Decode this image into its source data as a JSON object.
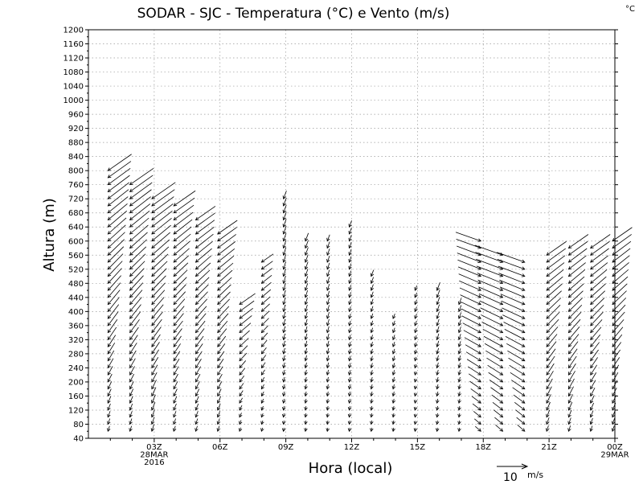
{
  "chart_data": {
    "type": "wind-barb-time-height",
    "title": "SODAR - SJC - Temperatura (°C) e Vento (m/s)",
    "corner_unit": "°C",
    "ylabel": "Altura (m)",
    "xlabel": "Hora (local)",
    "ylim": [
      40,
      1200
    ],
    "y_ticks": [
      40,
      80,
      120,
      160,
      200,
      240,
      280,
      320,
      360,
      400,
      440,
      480,
      520,
      560,
      600,
      640,
      680,
      720,
      760,
      800,
      840,
      880,
      920,
      960,
      1000,
      1040,
      1080,
      1120,
      1160,
      1200
    ],
    "x_range_hours": [
      0,
      24
    ],
    "x_ticks": [
      {
        "hour": 3,
        "lines": [
          "03Z",
          "28MAR",
          "2016"
        ]
      },
      {
        "hour": 6,
        "lines": [
          "06Z"
        ]
      },
      {
        "hour": 9,
        "lines": [
          "09Z"
        ]
      },
      {
        "hour": 12,
        "lines": [
          "12Z"
        ]
      },
      {
        "hour": 15,
        "lines": [
          "15Z"
        ]
      },
      {
        "hour": 18,
        "lines": [
          "18Z"
        ]
      },
      {
        "hour": 21,
        "lines": [
          "21Z"
        ]
      },
      {
        "hour": 24,
        "lines": [
          "00Z",
          "29MAR"
        ]
      }
    ],
    "reference_vector": {
      "value": "10",
      "unit": "m/s"
    },
    "profiles": [
      {
        "hour": 1,
        "top": 800,
        "ws": [
          [
            40,
            3
          ],
          [
            200,
            5
          ],
          [
            360,
            9
          ],
          [
            600,
            11
          ],
          [
            800,
            12
          ]
        ]
      },
      {
        "hour": 2,
        "top": 760,
        "ws": [
          [
            40,
            3
          ],
          [
            200,
            5
          ],
          [
            360,
            9
          ],
          [
            600,
            11
          ],
          [
            760,
            12
          ]
        ]
      },
      {
        "hour": 3,
        "top": 720,
        "ws": [
          [
            40,
            4
          ],
          [
            200,
            6
          ],
          [
            360,
            9
          ],
          [
            600,
            11
          ],
          [
            720,
            12
          ]
        ]
      },
      {
        "hour": 4,
        "top": 700,
        "ws": [
          [
            40,
            3
          ],
          [
            200,
            5
          ],
          [
            360,
            8
          ],
          [
            600,
            10
          ],
          [
            700,
            11
          ]
        ]
      },
      {
        "hour": 5,
        "top": 660,
        "ws": [
          [
            40,
            3
          ],
          [
            200,
            5
          ],
          [
            360,
            8
          ],
          [
            600,
            10
          ],
          [
            660,
            10
          ]
        ]
      },
      {
        "hour": 6,
        "top": 620,
        "ws": [
          [
            40,
            3
          ],
          [
            200,
            5
          ],
          [
            360,
            8
          ],
          [
            600,
            10
          ],
          [
            620,
            10
          ]
        ]
      },
      {
        "hour": 7,
        "top": 420,
        "ws": [
          [
            40,
            2
          ],
          [
            200,
            4
          ],
          [
            360,
            7
          ],
          [
            420,
            8
          ]
        ]
      },
      {
        "hour": 8,
        "top": 540,
        "ws": [
          [
            40,
            2
          ],
          [
            200,
            3
          ],
          [
            360,
            5
          ],
          [
            540,
            6
          ]
        ]
      },
      {
        "hour": 9,
        "top": 720,
        "ws": [
          [
            40,
            2
          ],
          [
            200,
            3
          ],
          [
            360,
            4
          ],
          [
            600,
            5
          ],
          [
            720,
            5
          ]
        ]
      },
      {
        "hour": 10,
        "top": 600,
        "ws": [
          [
            40,
            2
          ],
          [
            200,
            3
          ],
          [
            360,
            4
          ],
          [
            600,
            5
          ]
        ]
      },
      {
        "hour": 11,
        "top": 600,
        "ws": [
          [
            40,
            2
          ],
          [
            200,
            3
          ],
          [
            360,
            4
          ],
          [
            600,
            4
          ]
        ]
      },
      {
        "hour": 12,
        "top": 640,
        "ws": [
          [
            40,
            2
          ],
          [
            200,
            3
          ],
          [
            360,
            3
          ],
          [
            640,
            4
          ]
        ]
      },
      {
        "hour": 13,
        "top": 500,
        "ws": [
          [
            40,
            2
          ],
          [
            200,
            3
          ],
          [
            360,
            3
          ],
          [
            500,
            4
          ]
        ]
      },
      {
        "hour": 14,
        "top": 380,
        "ws": [
          [
            40,
            2
          ],
          [
            200,
            3
          ],
          [
            380,
            3
          ]
        ]
      },
      {
        "hour": 15,
        "top": 460,
        "ws": [
          [
            40,
            2
          ],
          [
            200,
            2
          ],
          [
            360,
            3
          ],
          [
            460,
            3
          ]
        ]
      },
      {
        "hour": 16,
        "top": 460,
        "ws": [
          [
            40,
            2
          ],
          [
            200,
            3
          ],
          [
            360,
            4
          ],
          [
            460,
            5
          ]
        ]
      },
      {
        "hour": 17,
        "top": 420,
        "ws": [
          [
            40,
            2
          ],
          [
            200,
            3
          ],
          [
            420,
            4
          ]
        ]
      },
      {
        "hour": 18,
        "top": 600,
        "ws": [
          [
            40,
            3
          ],
          [
            200,
            6
          ],
          [
            360,
            8
          ],
          [
            600,
            9
          ]
        ]
      },
      {
        "hour": 19,
        "top": 560,
        "ws": [
          [
            40,
            4
          ],
          [
            200,
            7
          ],
          [
            360,
            9
          ],
          [
            560,
            10
          ]
        ]
      },
      {
        "hour": 20,
        "top": 540,
        "ws": [
          [
            40,
            4
          ],
          [
            200,
            7
          ],
          [
            360,
            9
          ],
          [
            540,
            10
          ]
        ]
      },
      {
        "hour": 21,
        "top": 560,
        "ws": [
          [
            40,
            3
          ],
          [
            200,
            7
          ],
          [
            360,
            9
          ],
          [
            560,
            10
          ]
        ]
      },
      {
        "hour": 22,
        "top": 580,
        "ws": [
          [
            40,
            3
          ],
          [
            200,
            7
          ],
          [
            360,
            9
          ],
          [
            580,
            10
          ]
        ]
      },
      {
        "hour": 23,
        "top": 580,
        "ws": [
          [
            40,
            3
          ],
          [
            200,
            6
          ],
          [
            360,
            9
          ],
          [
            580,
            10
          ]
        ]
      },
      {
        "hour": 24,
        "top": 600,
        "ws": [
          [
            40,
            3
          ],
          [
            200,
            6
          ],
          [
            360,
            9
          ],
          [
            600,
            10
          ]
        ]
      }
    ]
  }
}
